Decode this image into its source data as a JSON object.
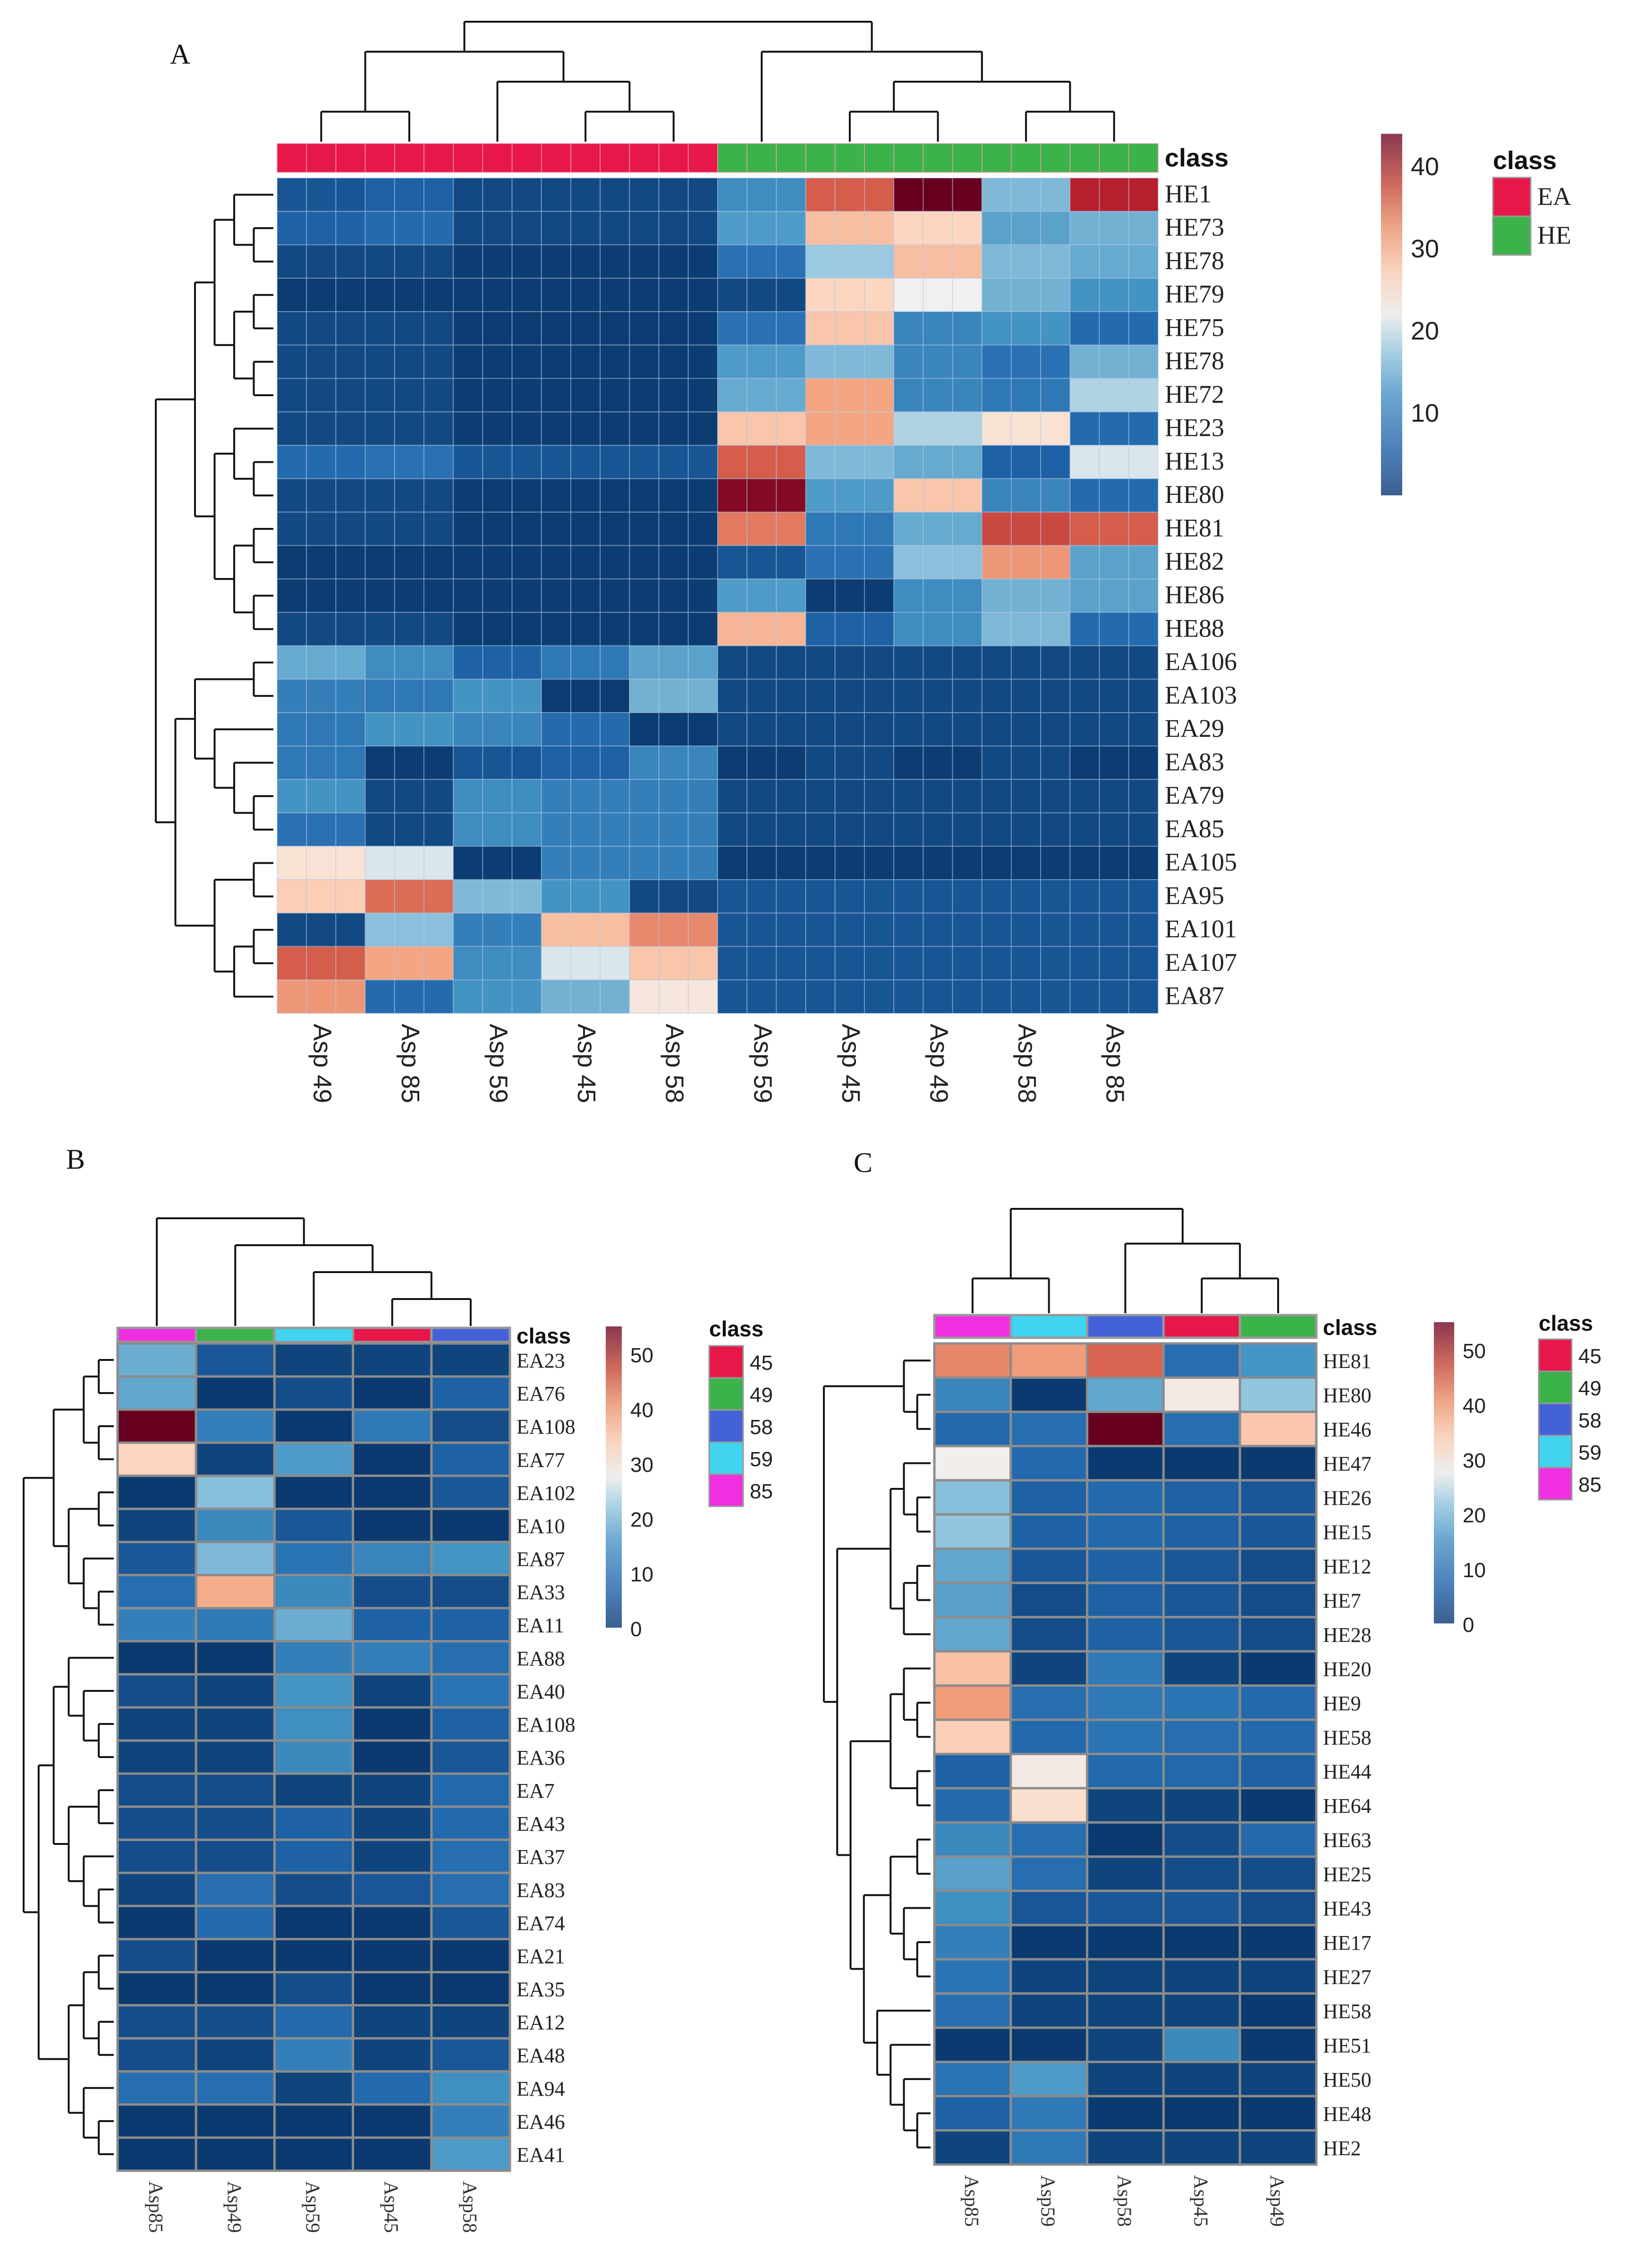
{
  "panel_labels": {
    "a": "A",
    "b": "B",
    "c": "C"
  },
  "chart_data": [
    {
      "type": "heatmap",
      "panel": "A",
      "columns": [
        "Asp 49",
        "Asp 85",
        "Asp 59",
        "Asp 45",
        "Asp 58",
        "Asp 59",
        "Asp 45",
        "Asp 49",
        "Asp 58",
        "Asp 85"
      ],
      "column_classes": [
        "EA",
        "EA",
        "EA",
        "EA",
        "EA",
        "HE",
        "HE",
        "HE",
        "HE",
        "HE"
      ],
      "rows": [
        "HE1",
        "HE73",
        "HE78",
        "HE79",
        "HE75",
        "HE78",
        "HE72",
        "HE23",
        "HE13",
        "HE80",
        "HE81",
        "HE82",
        "HE86",
        "HE88",
        "EA106",
        "EA103",
        "EA29",
        "EA83",
        "EA79",
        "EA85",
        "EA105",
        "EA95",
        "EA101",
        "EA107",
        "EA87"
      ],
      "values": [
        [
          3,
          4,
          2,
          2,
          2,
          10,
          38,
          44,
          16,
          41
        ],
        [
          4,
          5,
          2,
          2,
          2,
          12,
          30,
          27,
          13,
          15
        ],
        [
          2,
          2,
          1,
          1,
          1,
          6,
          18,
          30,
          16,
          14
        ],
        [
          1,
          1,
          1,
          1,
          1,
          2,
          27,
          22,
          15,
          11
        ],
        [
          2,
          2,
          1,
          1,
          1,
          6,
          29,
          9,
          11,
          5
        ],
        [
          2,
          2,
          1,
          1,
          1,
          12,
          16,
          9,
          6,
          15
        ],
        [
          2,
          2,
          1,
          1,
          1,
          14,
          33,
          9,
          7,
          19
        ],
        [
          2,
          2,
          1,
          1,
          1,
          29,
          33,
          19,
          25,
          5
        ],
        [
          5,
          6,
          3,
          3,
          3,
          38,
          16,
          14,
          4,
          21
        ],
        [
          2,
          2,
          1,
          1,
          1,
          43,
          12,
          29,
          9,
          5
        ],
        [
          2,
          2,
          1,
          1,
          1,
          36,
          7,
          14,
          39,
          38
        ],
        [
          1,
          1,
          1,
          1,
          1,
          3,
          6,
          17,
          34,
          13
        ],
        [
          1,
          1,
          1,
          1,
          1,
          12,
          1,
          10,
          15,
          13
        ],
        [
          2,
          2,
          1,
          1,
          1,
          31,
          4,
          10,
          16,
          5
        ],
        [
          14,
          10,
          4,
          7,
          13,
          2,
          2,
          2,
          2,
          2
        ],
        [
          8,
          7,
          11,
          1,
          15,
          2,
          2,
          2,
          2,
          2
        ],
        [
          7,
          11,
          9,
          5,
          1,
          2,
          2,
          2,
          2,
          2
        ],
        [
          7,
          1,
          3,
          4,
          9,
          1,
          2,
          1,
          2,
          1
        ],
        [
          11,
          2,
          10,
          8,
          8,
          2,
          2,
          2,
          2,
          2
        ],
        [
          6,
          2,
          10,
          8,
          8,
          2,
          2,
          2,
          2,
          2
        ],
        [
          25,
          21,
          1,
          8,
          8,
          1,
          1,
          1,
          1,
          1
        ],
        [
          28,
          37,
          16,
          11,
          2,
          3,
          3,
          3,
          3,
          3
        ],
        [
          2,
          17,
          8,
          30,
          35,
          3,
          3,
          3,
          3,
          3
        ],
        [
          38,
          33,
          10,
          21,
          29,
          3,
          3,
          3,
          3,
          3
        ],
        [
          34,
          5,
          11,
          15,
          24,
          3,
          3,
          3,
          3,
          3
        ]
      ],
      "value_range": [
        0,
        44
      ],
      "colorbar_ticks": [
        "10",
        "20",
        "30",
        "40"
      ],
      "legend_title": "class",
      "legend": [
        {
          "label": "EA",
          "color": "#e8174a"
        },
        {
          "label": "HE",
          "color": "#3bb34a"
        }
      ],
      "class_bar_label": "class"
    },
    {
      "type": "heatmap",
      "panel": "B",
      "columns": [
        "Asp85",
        "Asp49",
        "Asp59",
        "Asp45",
        "Asp58"
      ],
      "column_classes": [
        "85",
        "49",
        "59",
        "45",
        "58"
      ],
      "rows": [
        "EA23",
        "EA76",
        "EA108",
        "EA77",
        "EA102",
        "EA10",
        "EA87",
        "EA33",
        "EA11",
        "EA88",
        "EA40",
        "EA108",
        "EA36",
        "EA7",
        "EA43",
        "EA37",
        "EA83",
        "EA74",
        "EA21",
        "EA35",
        "EA12",
        "EA48",
        "EA94",
        "EA46",
        "EA41"
      ],
      "values": [
        [
          18,
          4,
          2,
          2,
          2
        ],
        [
          17,
          1,
          3,
          1,
          5
        ],
        [
          55,
          10,
          1,
          9,
          3
        ],
        [
          34,
          2,
          15,
          1,
          5
        ],
        [
          1,
          21,
          1,
          1,
          4
        ],
        [
          2,
          12,
          4,
          1,
          1
        ],
        [
          4,
          20,
          8,
          11,
          14
        ],
        [
          7,
          40,
          12,
          3,
          3
        ],
        [
          10,
          9,
          18,
          5,
          5
        ],
        [
          1,
          1,
          10,
          10,
          7
        ],
        [
          3,
          2,
          14,
          2,
          8
        ],
        [
          2,
          2,
          13,
          1,
          5
        ],
        [
          2,
          2,
          12,
          1,
          4
        ],
        [
          3,
          3,
          2,
          2,
          6
        ],
        [
          3,
          3,
          5,
          2,
          6
        ],
        [
          3,
          3,
          5,
          2,
          7
        ],
        [
          2,
          7,
          3,
          4,
          7
        ],
        [
          1,
          6,
          1,
          1,
          4
        ],
        [
          3,
          1,
          1,
          1,
          1
        ],
        [
          1,
          1,
          3,
          1,
          1
        ],
        [
          3,
          3,
          6,
          2,
          2
        ],
        [
          3,
          2,
          10,
          2,
          4
        ],
        [
          7,
          7,
          2,
          6,
          13
        ],
        [
          1,
          1,
          1,
          1,
          10
        ],
        [
          1,
          1,
          1,
          1,
          15
        ]
      ],
      "value_range": [
        0,
        55
      ],
      "colorbar_ticks": [
        "0",
        "10",
        "20",
        "30",
        "40",
        "50"
      ],
      "legend_title": "class",
      "legend": [
        {
          "label": "45",
          "color": "#e8174a"
        },
        {
          "label": "49",
          "color": "#3bb34a"
        },
        {
          "label": "58",
          "color": "#4462d8"
        },
        {
          "label": "59",
          "color": "#40d4f0"
        },
        {
          "label": "85",
          "color": "#f030e0"
        }
      ],
      "class_bar_label": "class"
    },
    {
      "type": "heatmap",
      "panel": "C",
      "columns": [
        "Asp85",
        "Asp59",
        "Asp58",
        "Asp45",
        "Asp49"
      ],
      "column_classes": [
        "85",
        "59",
        "58",
        "45",
        "49"
      ],
      "rows": [
        "HE81",
        "HE80",
        "HE46",
        "HE47",
        "HE26",
        "HE15",
        "HE12",
        "HE7",
        "HE28",
        "HE20",
        "HE9",
        "HE58",
        "HE44",
        "HE64",
        "HE63",
        "HE25",
        "HE43",
        "HE17",
        "HE27",
        "HE58",
        "HE51",
        "HE50",
        "HE48",
        "HE2"
      ],
      "values": [
        [
          44,
          42,
          47,
          7,
          14
        ],
        [
          11,
          1,
          17,
          29,
          22
        ],
        [
          6,
          7,
          55,
          7,
          36
        ],
        [
          28,
          6,
          1,
          1,
          1
        ],
        [
          21,
          5,
          6,
          5,
          4
        ],
        [
          22,
          5,
          6,
          5,
          4
        ],
        [
          17,
          4,
          5,
          4,
          3
        ],
        [
          16,
          3,
          5,
          4,
          3
        ],
        [
          17,
          3,
          5,
          4,
          3
        ],
        [
          37,
          2,
          9,
          2,
          1
        ],
        [
          42,
          7,
          9,
          8,
          6
        ],
        [
          35,
          6,
          8,
          7,
          6
        ],
        [
          5,
          29,
          6,
          6,
          5
        ],
        [
          6,
          32,
          2,
          2,
          1
        ],
        [
          12,
          7,
          1,
          3,
          6
        ],
        [
          16,
          7,
          2,
          3,
          3
        ],
        [
          13,
          4,
          4,
          4,
          3
        ],
        [
          10,
          1,
          1,
          1,
          1
        ],
        [
          8,
          2,
          2,
          2,
          2
        ],
        [
          7,
          2,
          2,
          2,
          1
        ],
        [
          1,
          1,
          2,
          12,
          1
        ],
        [
          8,
          15,
          2,
          2,
          2
        ],
        [
          5,
          9,
          1,
          1,
          1
        ],
        [
          2,
          9,
          2,
          2,
          2
        ]
      ],
      "value_range": [
        0,
        55
      ],
      "colorbar_ticks": [
        "0",
        "10",
        "20",
        "30",
        "40",
        "50"
      ],
      "legend_title": "class",
      "legend": [
        {
          "label": "45",
          "color": "#e8174a"
        },
        {
          "label": "49",
          "color": "#3bb34a"
        },
        {
          "label": "58",
          "color": "#4462d8"
        },
        {
          "label": "59",
          "color": "#40d4f0"
        },
        {
          "label": "85",
          "color": "#f030e0"
        }
      ],
      "class_bar_label": "class"
    }
  ]
}
